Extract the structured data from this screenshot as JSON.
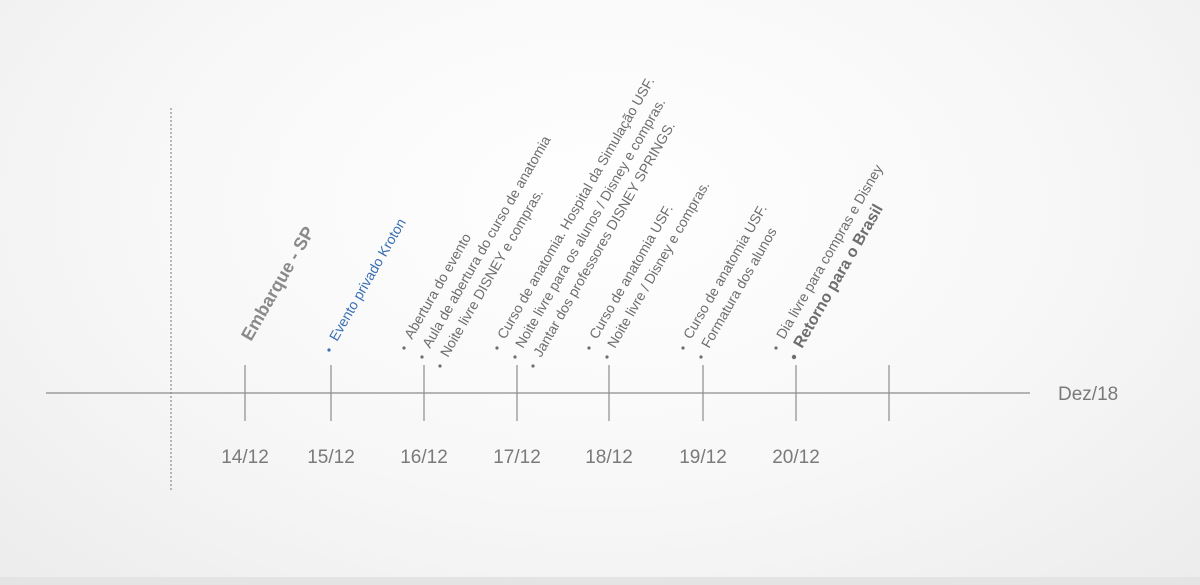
{
  "month": "Dez/18",
  "colors": {
    "axis": "#8c8c8c",
    "text": "#6e6e6e",
    "accent": "#3a6fb0"
  },
  "days": [
    {
      "date": "14/12",
      "events": [
        {
          "text": "Embarque - SP",
          "style": "bold-large"
        }
      ]
    },
    {
      "date": "15/12",
      "events": [
        {
          "text": "Evento privado Kroton",
          "style": "blue"
        }
      ]
    },
    {
      "date": "16/12",
      "events": [
        {
          "text": "Abertura do evento",
          "style": "normal"
        },
        {
          "text": "Aula de abertura do curso de anatomia",
          "style": "normal"
        },
        {
          "text": "Noite livre DISNEY e compras.",
          "style": "normal"
        }
      ]
    },
    {
      "date": "17/12",
      "events": [
        {
          "text": "Curso de anatomia. Hospital da Simulação USF.",
          "style": "normal"
        },
        {
          "text": "Noite livre para os alunos / Disney e compras.",
          "style": "normal"
        },
        {
          "text": "Jantar dos professores DISNEY SPRINGS.",
          "style": "normal"
        }
      ]
    },
    {
      "date": "18/12",
      "events": [
        {
          "text": "Curso de anatomia USF.",
          "style": "normal"
        },
        {
          "text": "Noite livre / Disney e compras.",
          "style": "normal"
        }
      ]
    },
    {
      "date": "19/12",
      "events": [
        {
          "text": "Curso de anatomia USF.",
          "style": "normal"
        },
        {
          "text": "Formatura dos alunos",
          "style": "normal"
        }
      ]
    },
    {
      "date": "20/12",
      "events": [
        {
          "text": "Dia livre para compras e Disney",
          "style": "normal"
        },
        {
          "text": "Retorno para o Brasil",
          "style": "bold-medium"
        }
      ]
    },
    {
      "date": "",
      "events": []
    }
  ]
}
